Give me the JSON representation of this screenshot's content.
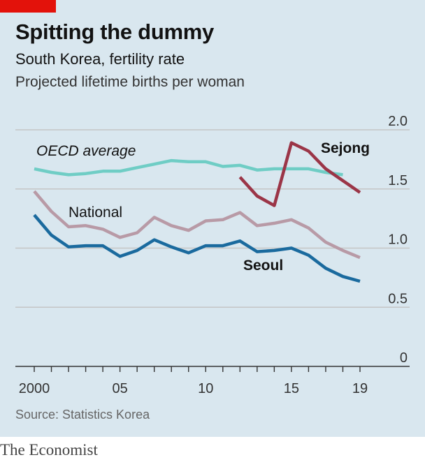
{
  "header": {
    "title": "Spitting the dummy",
    "subtitle": "South Korea, fertility rate",
    "ylabel": "Projected lifetime births per woman"
  },
  "footer": {
    "source": "Source: Statistics Korea",
    "brand": "The Economist"
  },
  "colors": {
    "panel_bg": "#d9e7ef",
    "accent_red": "#e3120b",
    "oecd": "#6fcdc5",
    "national": "#b89aa6",
    "seoul": "#1a6a9e",
    "sejong": "#9b3547",
    "gridline": "#c5c5c5",
    "axis": "#333333"
  },
  "chart_data": {
    "type": "line",
    "title": "Spitting the dummy",
    "subtitle": "South Korea, fertility rate",
    "ylabel": "Projected lifetime births per woman",
    "xlim": [
      2000,
      2019
    ],
    "ylim": [
      0,
      2.0
    ],
    "y_ticks": [
      0,
      0.5,
      1.0,
      1.5,
      2.0
    ],
    "y_tick_labels": [
      "0",
      "0.5",
      "1.0",
      "1.5",
      "2.0"
    ],
    "x_ticks": [
      2000,
      2005,
      2010,
      2015,
      2019
    ],
    "x_tick_labels": [
      "2000",
      "05",
      "10",
      "15",
      "19"
    ],
    "grid": "horizontal",
    "series": [
      {
        "name": "OECD average",
        "label_style": "italic",
        "color": "#6fcdc5",
        "x": [
          2000,
          2001,
          2002,
          2003,
          2004,
          2005,
          2006,
          2007,
          2008,
          2009,
          2010,
          2011,
          2012,
          2013,
          2014,
          2015,
          2016,
          2017,
          2018
        ],
        "values": [
          1.67,
          1.64,
          1.62,
          1.63,
          1.65,
          1.65,
          1.68,
          1.71,
          1.74,
          1.73,
          1.73,
          1.69,
          1.7,
          1.66,
          1.67,
          1.67,
          1.67,
          1.64,
          1.62
        ]
      },
      {
        "name": "National",
        "label_style": "regular",
        "color": "#b89aa6",
        "x": [
          2000,
          2001,
          2002,
          2003,
          2004,
          2005,
          2006,
          2007,
          2008,
          2009,
          2010,
          2011,
          2012,
          2013,
          2014,
          2015,
          2016,
          2017,
          2018,
          2019
        ],
        "values": [
          1.48,
          1.31,
          1.18,
          1.19,
          1.16,
          1.09,
          1.13,
          1.26,
          1.19,
          1.15,
          1.23,
          1.24,
          1.3,
          1.19,
          1.21,
          1.24,
          1.17,
          1.05,
          0.98,
          0.92
        ]
      },
      {
        "name": "Seoul",
        "label_style": "bold",
        "color": "#1a6a9e",
        "x": [
          2000,
          2001,
          2002,
          2003,
          2004,
          2005,
          2006,
          2007,
          2008,
          2009,
          2010,
          2011,
          2012,
          2013,
          2014,
          2015,
          2016,
          2017,
          2018,
          2019
        ],
        "values": [
          1.28,
          1.11,
          1.01,
          1.02,
          1.02,
          0.93,
          0.98,
          1.07,
          1.01,
          0.96,
          1.02,
          1.02,
          1.06,
          0.97,
          0.98,
          1.0,
          0.94,
          0.83,
          0.76,
          0.72
        ]
      },
      {
        "name": "Sejong",
        "label_style": "bold",
        "color": "#9b3547",
        "x": [
          2012,
          2013,
          2014,
          2015,
          2016,
          2017,
          2018,
          2019
        ],
        "values": [
          1.6,
          1.44,
          1.36,
          1.89,
          1.82,
          1.67,
          1.57,
          1.47
        ]
      }
    ],
    "annotations": [
      {
        "text": "OECD average",
        "series": "OECD average"
      },
      {
        "text": "National",
        "series": "National"
      },
      {
        "text": "Seoul",
        "series": "Seoul"
      },
      {
        "text": "Sejong",
        "series": "Sejong"
      }
    ]
  }
}
